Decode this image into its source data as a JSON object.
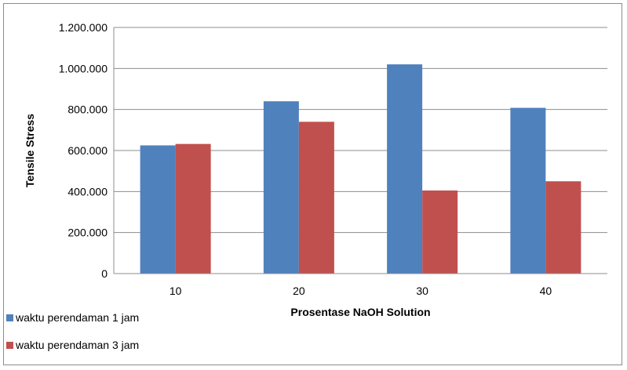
{
  "chart_data": {
    "type": "bar",
    "categories": [
      "10",
      "20",
      "30",
      "40"
    ],
    "series": [
      {
        "name": "waktu perendaman 1 jam",
        "color": "#4F81BD",
        "values": [
          625000,
          840000,
          1020000,
          808000
        ]
      },
      {
        "name": "waktu perendaman 3 jam",
        "color": "#C0504D",
        "values": [
          632000,
          740000,
          405000,
          450000
        ]
      }
    ],
    "xlabel": "Prosentase NaOH Solution",
    "ylabel": "Tensile Stress",
    "ylim": [
      0,
      1200000
    ],
    "yticks": [
      0,
      200000,
      400000,
      600000,
      800000,
      1000000,
      1200000
    ],
    "ytick_labels": [
      "0",
      "200.000",
      "400.000",
      "600.000",
      "800.000",
      "1.000.000",
      "1.200.000"
    ],
    "grid": "horizontal",
    "legend_position": "bottom-left"
  }
}
